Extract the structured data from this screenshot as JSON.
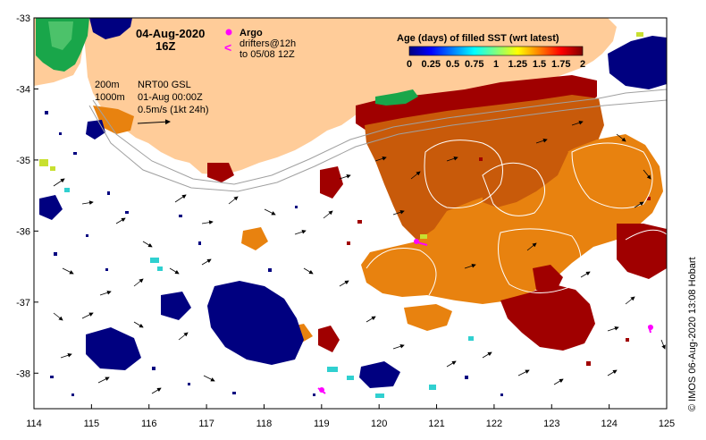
{
  "map": {
    "date_title": "04-Aug-2020",
    "time_title": "16Z",
    "argo_label": "Argo",
    "drifters_label": "drifters@12h",
    "drifters_range": "to 05/08 12Z",
    "isobath_shallow": "200m",
    "isobath_deep": "1000m",
    "product_name": "NRT00 GSL",
    "product_time": "01-Aug 00:00Z",
    "vector_scale": "0.5m/s (1kt 24h)",
    "credit": "© IMOS 06-Aug-2020 13:08 Hobart",
    "lon_range": [
      114,
      125
    ],
    "lat_range": [
      -38.5,
      -33
    ],
    "lon_ticks": [
      "114",
      "115",
      "116",
      "117",
      "118",
      "119",
      "120",
      "121",
      "122",
      "123",
      "124",
      "125"
    ],
    "lat_ticks": [
      "-33",
      "-34",
      "-35",
      "-36",
      "-37",
      "-38"
    ]
  },
  "legend": {
    "title": "Age (days) of filled SST (wrt latest)",
    "tick_labels": [
      "0",
      "0.25",
      "0.5",
      "0.75",
      "1",
      "1.25",
      "1.5",
      "1.75",
      "2"
    ],
    "range": [
      0,
      2
    ],
    "colors": [
      "#00007f",
      "#0000ff",
      "#007fff",
      "#00ffff",
      "#7fff7f",
      "#ffff00",
      "#ff7f00",
      "#ff0000",
      "#7f0000"
    ]
  },
  "colors": {
    "land": "#ffcc99",
    "old_sst_dark": "#a00000",
    "old_sst_mid": "#c85a0a",
    "old_sst_orange": "#e8820f",
    "young_sst_navy": "#000080",
    "argo_marker": "#ff00ff",
    "drifter_track": "#ff00ff",
    "isobath": "#a0a0a0",
    "contour": "#ffffff"
  }
}
